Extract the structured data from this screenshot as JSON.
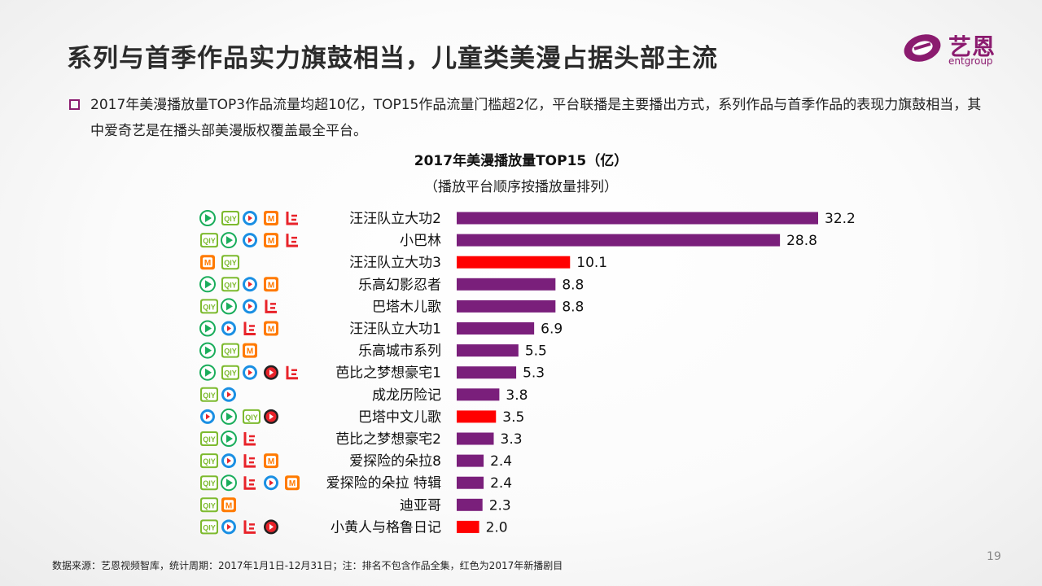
{
  "slide": {
    "title": "系列与首季作品实力旗鼓相当，儿童类美漫占据头部主流",
    "bullet": "2017年美漫播放量TOP3作品流量均超10亿，TOP15作品流量门槛超2亿，平台联播是主要播出方式，系列作品与首季作品的表现力旗鼓相当，其中爱奇艺是在播头部美漫版权覆盖最全平台。",
    "footer": "数据来源：艺恩视频智库，统计周期：2017年1月1日-12月31日；注：排名不包含作品全集，红色为2017年新播剧目",
    "page_number": "19"
  },
  "logo": {
    "cn": "艺恩",
    "en": "entgroup"
  },
  "colors": {
    "existing": "#7a1f7b",
    "new": "#ff0000",
    "brand": "#8b1b6f"
  },
  "platform_icons": {
    "tencent": {
      "label": "",
      "color": "#1aad5b"
    },
    "iqiyi": {
      "label": "QIY",
      "color": "#7dba2f"
    },
    "youku": {
      "label": "",
      "color": "#1a8fe3"
    },
    "mgtv": {
      "label": "M",
      "color": "#ff7a00"
    },
    "letv": {
      "label": "L",
      "color": "#e8232a"
    },
    "sohu": {
      "label": "",
      "color": "#e8232a"
    }
  },
  "chart_data": {
    "type": "bar",
    "orientation": "horizontal",
    "title": "2017年美漫播放量TOP15（亿）",
    "subtitle": "（播放平台顺序按播放量排列）",
    "categories": [
      "汪汪队立大功2",
      "小巴林",
      "汪汪队立大功3",
      "乐高幻影忍者",
      "巴塔木儿歌",
      "汪汪队立大功1",
      "乐高城市系列",
      "芭比之梦想豪宅1",
      "成龙历险记",
      "巴塔中文儿歌",
      "芭比之梦想豪宅2",
      "爱探险的朵拉8",
      "爱探险的朵拉 特辑",
      "迪亚哥",
      "小黄人与格鲁日记"
    ],
    "values": [
      32.2,
      28.8,
      10.1,
      8.8,
      8.8,
      6.9,
      5.5,
      5.3,
      3.8,
      3.5,
      3.3,
      2.4,
      2.4,
      2.3,
      2.0
    ],
    "value_labels": [
      "32.2",
      "28.8",
      "10.1",
      "8.8",
      "8.8",
      "6.9",
      "5.5",
      "5.3",
      "3.8",
      "3.5",
      "3.3",
      "2.4",
      "2.4",
      "2.3",
      "2.0"
    ],
    "is_new": [
      false,
      false,
      true,
      false,
      false,
      false,
      false,
      false,
      false,
      true,
      false,
      false,
      false,
      false,
      true
    ],
    "platforms": [
      [
        "tencent",
        "iqiyi",
        "youku",
        "mgtv",
        "letv"
      ],
      [
        "iqiyi",
        "tencent",
        "youku",
        "mgtv",
        "letv"
      ],
      [
        "mgtv",
        "iqiyi"
      ],
      [
        "tencent",
        "iqiyi",
        "youku",
        "mgtv"
      ],
      [
        "iqiyi",
        "tencent",
        "youku",
        "letv"
      ],
      [
        "tencent",
        "youku",
        "letv",
        "mgtv"
      ],
      [
        "tencent",
        "iqiyi",
        "mgtv"
      ],
      [
        "tencent",
        "iqiyi",
        "youku",
        "sohu",
        "letv"
      ],
      [
        "iqiyi",
        "youku"
      ],
      [
        "youku",
        "tencent",
        "iqiyi",
        "sohu"
      ],
      [
        "iqiyi",
        "tencent",
        "letv"
      ],
      [
        "iqiyi",
        "youku",
        "letv",
        "mgtv"
      ],
      [
        "iqiyi",
        "tencent",
        "letv",
        "youku",
        "mgtv"
      ],
      [
        "iqiyi",
        "mgtv"
      ],
      [
        "iqiyi",
        "youku",
        "letv",
        "sohu"
      ]
    ],
    "xlim": [
      0,
      32.2
    ]
  }
}
